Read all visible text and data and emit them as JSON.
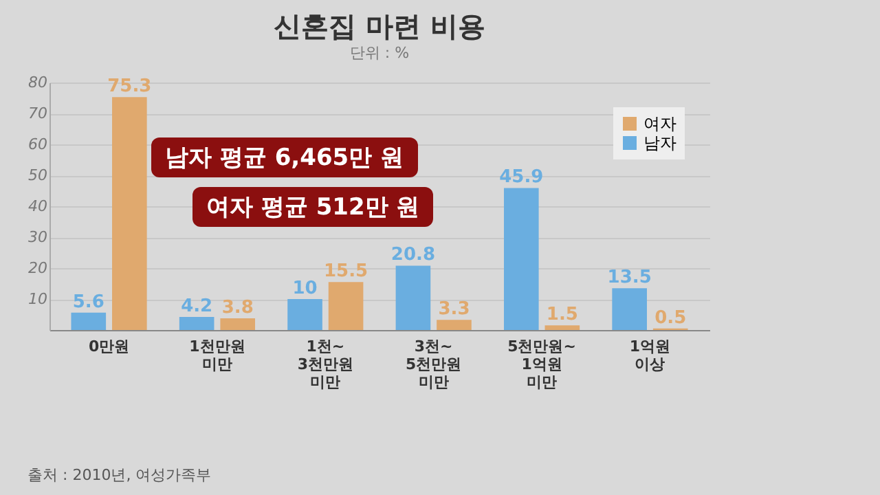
{
  "chart_data": {
    "type": "bar",
    "title": "신혼집 마련 비용",
    "ylabel": "단위 : %",
    "categories": [
      "0만원",
      "1천만원 미만",
      "1천~3천만원 미만",
      "3천~5천만원 미만",
      "5천만원~1억원 미만",
      "1억원 이상"
    ],
    "series": [
      {
        "name": "여자",
        "color": "#e0a96e",
        "values": [
          75.3,
          3.8,
          15.5,
          3.3,
          1.5,
          0.5
        ]
      },
      {
        "name": "남자",
        "color": "#6aaee0",
        "values": [
          5.6,
          4.2,
          10,
          20.8,
          45.9,
          13.5
        ]
      }
    ],
    "ylim": [
      0,
      80
    ],
    "yticks": [
      10,
      20,
      30,
      40,
      50,
      60,
      70,
      80
    ],
    "grid": "y",
    "legend": "top right",
    "data_labels": true,
    "annotations": [
      "남자 평균 6,465만 원",
      "여자 평균 512만 원",
      "출처 : 2010년, 여성가족부"
    ]
  }
}
